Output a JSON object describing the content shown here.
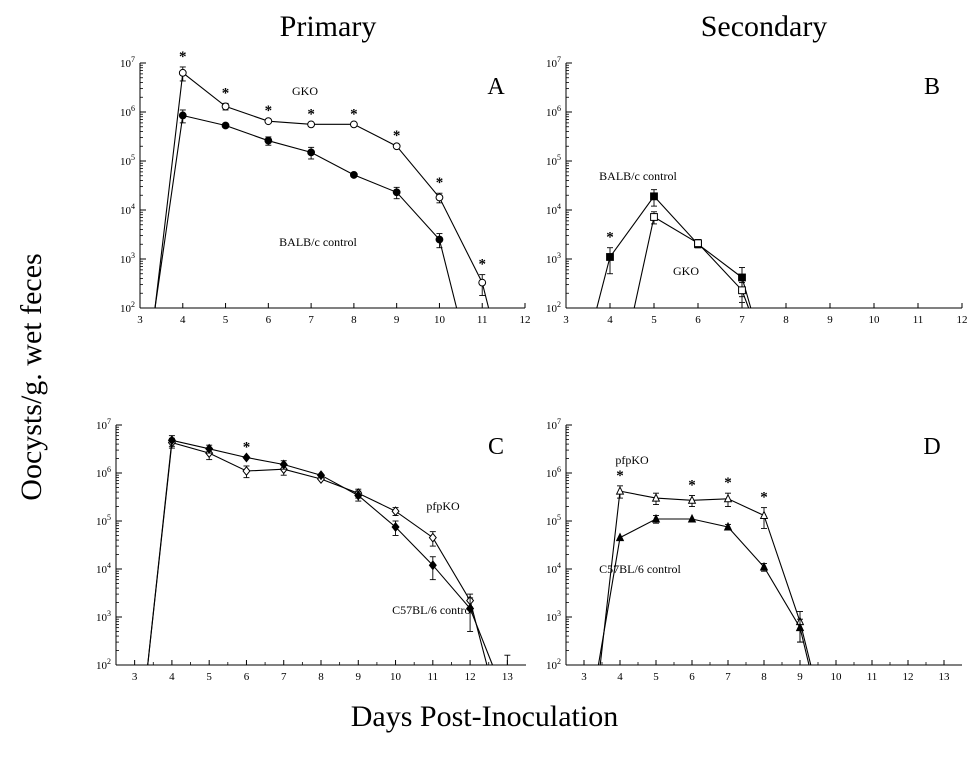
{
  "column_titles": {
    "primary": "Primary",
    "secondary": "Secondary"
  },
  "ylabel": "Oocysts/g. wet feces",
  "xlabel": "Days Post-Inoculation",
  "chart_data": [
    {
      "panel": "A",
      "type": "line",
      "yscale": "log",
      "ylim": [
        100,
        10000000
      ],
      "xlim": [
        3,
        12
      ],
      "xticks": [
        "3",
        "4",
        "5",
        "6",
        "7",
        "8",
        "9",
        "10",
        "11",
        "12"
      ],
      "yticks": [
        "10^2",
        "10^3",
        "10^4",
        "10^5",
        "10^6",
        "10^7"
      ],
      "series": [
        {
          "name": "GKO",
          "marker": "open-circle",
          "x": [
            3.35,
            4,
            5,
            6,
            7,
            8,
            9,
            10,
            11,
            11.15
          ],
          "y": [
            100,
            6300000,
            1300000,
            650000,
            560000,
            560000,
            200000,
            18000,
            330,
            100
          ],
          "err": [
            null,
            2000000,
            200000,
            null,
            null,
            null,
            null,
            4000,
            150,
            null
          ]
        },
        {
          "name": "BALB/c control",
          "marker": "filled-circle",
          "x": [
            3.35,
            4,
            5,
            6,
            7,
            8,
            9,
            10,
            10.4
          ],
          "y": [
            100,
            850000,
            530000,
            260000,
            150000,
            52000,
            23000,
            2500,
            100
          ],
          "err": [
            null,
            250000,
            null,
            50000,
            40000,
            null,
            6000,
            800,
            null
          ]
        }
      ],
      "significance_marks": {
        "symbol": "*",
        "x": [
          4,
          5,
          6,
          7,
          8,
          9,
          10,
          11
        ]
      }
    },
    {
      "panel": "B",
      "type": "line",
      "yscale": "log",
      "ylim": [
        100,
        10000000
      ],
      "xlim": [
        3,
        12
      ],
      "xticks": [
        "3",
        "4",
        "5",
        "6",
        "7",
        "8",
        "9",
        "10",
        "11",
        "12"
      ],
      "yticks": [
        "10^2",
        "10^3",
        "10^4",
        "10^5",
        "10^6",
        "10^7"
      ],
      "series": [
        {
          "name": "BALB/c control",
          "marker": "filled-square",
          "x": [
            3.7,
            4,
            5,
            6,
            7,
            7.2
          ],
          "y": [
            100,
            1100,
            19000,
            2000,
            420,
            100
          ],
          "err": [
            null,
            600,
            7000,
            300,
            250,
            null
          ]
        },
        {
          "name": "GKO",
          "marker": "open-square",
          "x": [
            4.55,
            5,
            6,
            7,
            7.15
          ],
          "y": [
            100,
            7200,
            2100,
            230,
            100
          ],
          "err": [
            null,
            2000,
            400,
            100,
            null
          ]
        }
      ],
      "significance_marks": {
        "symbol": "*",
        "x": [
          4
        ]
      }
    },
    {
      "panel": "C",
      "type": "line",
      "yscale": "log",
      "ylim": [
        100,
        10000000
      ],
      "xlim": [
        2.5,
        13.5
      ],
      "xticks": [
        "3",
        "4",
        "5",
        "6",
        "7",
        "8",
        "9",
        "10",
        "11",
        "12",
        "13"
      ],
      "yticks": [
        "10^2",
        "10^3",
        "10^4",
        "10^5",
        "10^6",
        "10^7"
      ],
      "series": [
        {
          "name": "pfpKO",
          "marker": "open-diamond",
          "x": [
            3.35,
            4,
            5,
            6,
            7,
            8,
            9,
            10,
            11,
            12,
            12.45
          ],
          "y": [
            100,
            4300000,
            2600000,
            1100000,
            1200000,
            750000,
            380000,
            160000,
            45000,
            2200,
            100
          ],
          "err": [
            null,
            1000000,
            700000,
            300000,
            300000,
            null,
            80000,
            30000,
            15000,
            800,
            null
          ]
        },
        {
          "name": "C57BL/6 control",
          "marker": "filled-diamond",
          "x": [
            3.35,
            4,
            5,
            6,
            7,
            8,
            9,
            10,
            11,
            12,
            12.6
          ],
          "y": [
            100,
            4800000,
            3200000,
            2100000,
            1500000,
            900000,
            340000,
            75000,
            12000,
            1500,
            100
          ],
          "err": [
            null,
            1200000,
            600000,
            null,
            300000,
            null,
            80000,
            25000,
            6000,
            1000,
            null
          ]
        }
      ],
      "extra_errorbar": {
        "x": 13,
        "y": 100,
        "err": 60
      },
      "significance_marks": {
        "symbol": "*",
        "x": [
          6
        ]
      }
    },
    {
      "panel": "D",
      "type": "line",
      "yscale": "log",
      "ylim": [
        100,
        10000000
      ],
      "xlim": [
        2.5,
        13.5
      ],
      "xticks": [
        "3",
        "4",
        "5",
        "6",
        "7",
        "8",
        "9",
        "10",
        "11",
        "12",
        "13"
      ],
      "yticks": [
        "10^2",
        "10^3",
        "10^4",
        "10^5",
        "10^6",
        "10^7"
      ],
      "series": [
        {
          "name": "pfpKO",
          "marker": "open-triangle",
          "x": [
            3.45,
            4,
            5,
            6,
            7,
            8,
            9,
            9.3
          ],
          "y": [
            100,
            420000,
            300000,
            270000,
            290000,
            130000,
            800,
            100
          ],
          "err": [
            null,
            120000,
            80000,
            70000,
            90000,
            60000,
            500,
            null
          ]
        },
        {
          "name": "C57BL/6 control",
          "marker": "filled-triangle",
          "x": [
            3.4,
            4,
            5,
            6,
            7,
            8,
            9,
            9.25
          ],
          "y": [
            100,
            45000,
            110000,
            110000,
            75000,
            11000,
            600,
            100
          ],
          "err": [
            null,
            null,
            20000,
            null,
            10000,
            2000,
            300,
            null
          ]
        }
      ],
      "significance_marks": {
        "symbol": "*",
        "x": [
          4,
          6,
          7,
          8
        ]
      }
    }
  ],
  "panels": [
    {
      "letter": "A",
      "labels": [
        "GKO",
        "BALB/c control"
      ]
    },
    {
      "letter": "B",
      "labels": [
        "BALB/c control",
        "GKO"
      ]
    },
    {
      "letter": "C",
      "labels": [
        "pfpKO",
        "C57BL/6 control"
      ]
    },
    {
      "letter": "D",
      "labels": [
        "pfpKO",
        "C57BL/6 control"
      ]
    }
  ],
  "colors": {
    "ink": "#000000",
    "background": "#ffffff"
  }
}
